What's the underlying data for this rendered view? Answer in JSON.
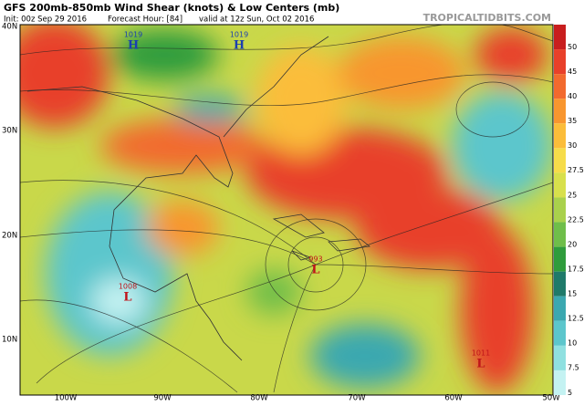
{
  "header": {
    "title": "GFS 200mb-850mb Wind Shear (knots) & Low Centers (mb)",
    "init": "Init: 00z Sep 29 2016",
    "forecast_hour": "Forecast Hour: [84]",
    "valid": "valid at 12z Sun, Oct 02 2016",
    "source": "TROPICALTIDBITS.COM"
  },
  "map": {
    "lat_labels": [
      "40N",
      "30N",
      "20N",
      "10N"
    ],
    "lon_labels": [
      "100W",
      "90W",
      "80W",
      "70W",
      "60W",
      "50W"
    ],
    "pressure_centers": [
      {
        "symbol": "H",
        "pressure": "1019"
      },
      {
        "symbol": "H",
        "pressure": "1019"
      },
      {
        "symbol": "L",
        "pressure": "993"
      },
      {
        "symbol": "L",
        "pressure": "1008"
      },
      {
        "symbol": "L",
        "pressure": "1011"
      }
    ]
  },
  "colorbar": {
    "labels": [
      "50",
      "45",
      "40",
      "35",
      "30",
      "27.5",
      "25",
      "22.5",
      "20",
      "17.5",
      "15",
      "12.5",
      "10",
      "7.5",
      "5"
    ],
    "colors": [
      "#c81e1e",
      "#e8402a",
      "#f26a2e",
      "#f8962f",
      "#fbbd3a",
      "#f6dc4a",
      "#d8e04c",
      "#a9d14c",
      "#6fbe4a",
      "#2f9c3c",
      "#1f7a6a",
      "#3ba8b0",
      "#5cc6cc",
      "#8fe0e0",
      "#c4f2f2"
    ]
  }
}
